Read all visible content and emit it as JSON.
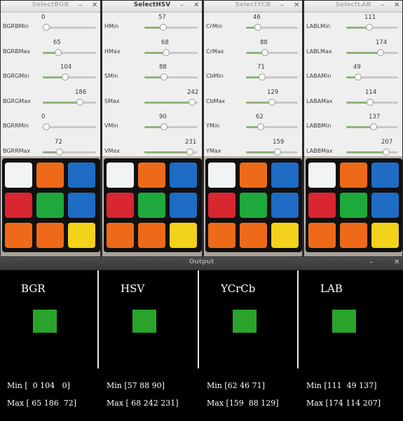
{
  "windows": [
    {
      "title": "SelectBGR",
      "active": false,
      "sliders": [
        {
          "label": "BGRBMin",
          "value": "0",
          "fraction": 0.0
        },
        {
          "label": "BGRBMax",
          "value": "65",
          "fraction": 0.255
        },
        {
          "label": "BGRGMin",
          "value": "104",
          "fraction": 0.408
        },
        {
          "label": "BGRGMax",
          "value": "186",
          "fraction": 0.729
        },
        {
          "label": "BGRRMin",
          "value": "0",
          "fraction": 0.0
        },
        {
          "label": "BGRRMax",
          "value": "72",
          "fraction": 0.282
        }
      ]
    },
    {
      "title": "SelectHSV",
      "active": true,
      "sliders": [
        {
          "label": "HMin",
          "value": "57",
          "fraction": 0.335
        },
        {
          "label": "HMax",
          "value": "68",
          "fraction": 0.4
        },
        {
          "label": "SMin",
          "value": "88",
          "fraction": 0.345
        },
        {
          "label": "SMax",
          "value": "242",
          "fraction": 0.949
        },
        {
          "label": "VMin",
          "value": "90",
          "fraction": 0.353
        },
        {
          "label": "VMax",
          "value": "231",
          "fraction": 0.906
        }
      ]
    },
    {
      "title": "SelectYCB",
      "active": false,
      "sliders": [
        {
          "label": "CrMin",
          "value": "46",
          "fraction": 0.18
        },
        {
          "label": "CrMax",
          "value": "88",
          "fraction": 0.345
        },
        {
          "label": "CbMin",
          "value": "71",
          "fraction": 0.278
        },
        {
          "label": "CbMax",
          "value": "129",
          "fraction": 0.506
        },
        {
          "label": "YMin",
          "value": "62",
          "fraction": 0.243
        },
        {
          "label": "YMax",
          "value": "159",
          "fraction": 0.624
        }
      ]
    },
    {
      "title": "SelectLAB",
      "active": false,
      "sliders": [
        {
          "label": "LABLMin",
          "value": "111",
          "fraction": 0.435
        },
        {
          "label": "LABLMax",
          "value": "174",
          "fraction": 0.682
        },
        {
          "label": "LABAMin",
          "value": "49",
          "fraction": 0.192
        },
        {
          "label": "LABAMax",
          "value": "114",
          "fraction": 0.447
        },
        {
          "label": "LABBMin",
          "value": "137",
          "fraction": 0.537
        },
        {
          "label": "LABBMax",
          "value": "207",
          "fraction": 0.812
        }
      ]
    }
  ],
  "cube_colors": [
    "#f1f3f5",
    "#ee6a18",
    "#1e6cc4",
    "#d92630",
    "#1fa83c",
    "#1e6cc4",
    "#ee6a18",
    "#ee6a18",
    "#f2d21a"
  ],
  "output": {
    "title": "Output",
    "swatch_color": "#2aa32a",
    "panels": [
      {
        "name": "BGR",
        "min": "Min [  0 104   0]",
        "max": "Max [ 65 186  72]"
      },
      {
        "name": "HSV",
        "min": "Min [57 88 90]",
        "max": "Max [ 68 242 231]"
      },
      {
        "name": "YCrCb",
        "min": "Min [62 46 71]",
        "max": "Max [159  88 129]"
      },
      {
        "name": "LAB",
        "min": "Min [111  49 137]",
        "max": "Max [174 114 207]"
      }
    ]
  },
  "icons": {
    "minimize": "minimize-icon",
    "close": "close-icon"
  }
}
